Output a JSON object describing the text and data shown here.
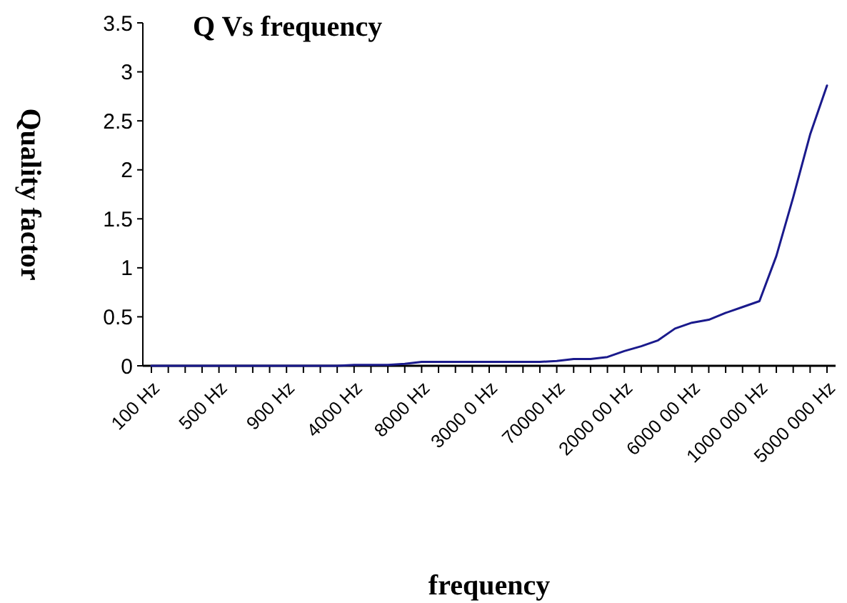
{
  "chart_data": {
    "type": "line",
    "title": "Q Vs frequency",
    "xlabel": "frequency",
    "ylabel": "Quality factor",
    "categories": [
      "100 Hz",
      null,
      null,
      null,
      "500 Hz",
      null,
      null,
      null,
      "900 Hz",
      null,
      null,
      null,
      "4000 Hz",
      null,
      null,
      null,
      "8000 Hz",
      null,
      null,
      null,
      "3000 0 Hz",
      null,
      null,
      null,
      "70000 Hz",
      null,
      null,
      null,
      "2000 00 Hz",
      null,
      null,
      null,
      "6000 00 Hz",
      null,
      null,
      null,
      "1000 000 Hz",
      null,
      null,
      null,
      "5000 000 Hz"
    ],
    "series": [
      {
        "color": "#1a1a8c",
        "values": [
          0,
          0,
          0,
          0,
          0,
          0,
          0,
          0,
          0,
          0,
          0,
          0,
          0.01,
          0.01,
          0.01,
          0.02,
          0.04,
          0.04,
          0.04,
          0.04,
          0.04,
          0.04,
          0.04,
          0.04,
          0.05,
          0.07,
          0.07,
          0.09,
          0.15,
          0.2,
          0.26,
          0.38,
          0.44,
          0.47,
          0.54,
          0.6,
          0.66,
          1.12,
          1.72,
          2.36,
          2.86
        ]
      }
    ],
    "ylim": [
      0,
      3.5
    ],
    "yticks": [
      0,
      0.5,
      1,
      1.5,
      2,
      2.5,
      3,
      3.5
    ],
    "grid": false
  }
}
